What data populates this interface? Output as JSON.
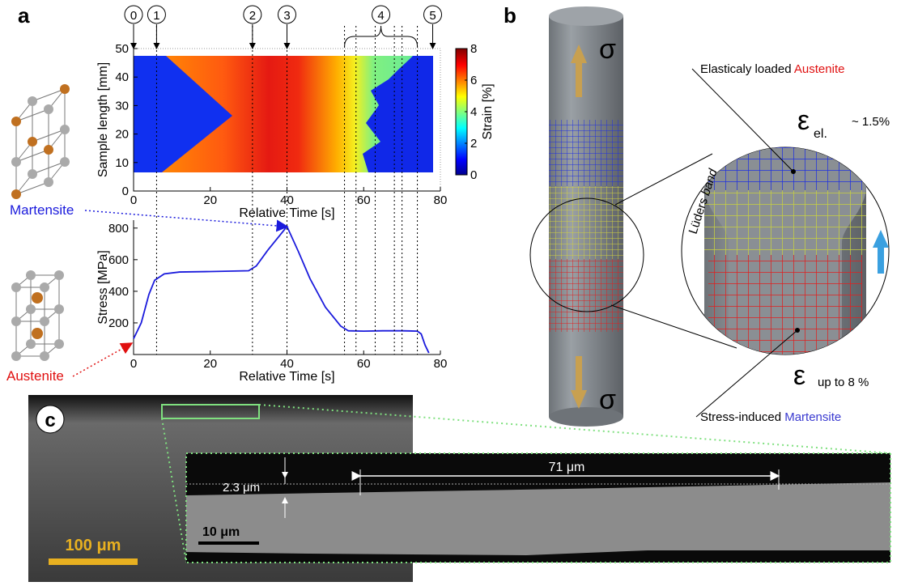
{
  "panel_labels": [
    "a",
    "b",
    "c"
  ],
  "phases": {
    "martensite": "Martensite",
    "austenite": "Austenite"
  },
  "stage_lines": [
    6,
    31,
    40,
    55,
    58,
    63,
    68,
    70,
    74
  ],
  "stages": [
    {
      "label": "0",
      "time": 0
    },
    {
      "label": "1",
      "time": 6
    },
    {
      "label": "2",
      "time": 31
    },
    {
      "label": "3",
      "time": 40
    },
    {
      "label": "4",
      "range": [
        55,
        74
      ]
    },
    {
      "label": "5",
      "time": 78
    }
  ],
  "chart_data": [
    {
      "type": "heatmap",
      "x_label": "Relative Time [s]",
      "y_label": "Sample length [mm]",
      "xlim": [
        0,
        80
      ],
      "xticks": [
        0,
        20,
        40,
        60,
        80
      ],
      "ylim": [
        0,
        50
      ],
      "yticks": [
        0,
        10,
        20,
        30,
        40,
        50
      ],
      "colorbar": {
        "label": "Strain [%]",
        "lim": [
          0,
          8
        ],
        "ticks": [
          0,
          2,
          4,
          6,
          8
        ]
      }
    },
    {
      "type": "line",
      "x_label": "Relative Time [s]",
      "y_label": "Stress [MPa]",
      "xlim": [
        0,
        80
      ],
      "xticks": [
        0,
        20,
        40,
        60,
        80
      ],
      "ylim": [
        0,
        850
      ],
      "yticks": [
        200,
        400,
        600,
        800
      ],
      "color": "#1a1adc",
      "x": [
        0,
        2,
        4,
        5.5,
        8,
        12,
        20,
        30,
        32,
        35,
        38,
        40,
        43,
        46,
        50,
        54,
        56,
        60,
        65,
        70,
        74,
        75,
        76,
        77
      ],
      "values": [
        100,
        200,
        380,
        470,
        510,
        522,
        525,
        530,
        560,
        660,
        750,
        810,
        650,
        480,
        300,
        180,
        150,
        148,
        150,
        150,
        148,
        130,
        60,
        10
      ]
    }
  ],
  "panel_b": {
    "sigma": "σ",
    "elastic_label": [
      "Elasticaly loaded ",
      "Austenite"
    ],
    "epsilon": "ε",
    "el_sub": "el.",
    "el_value": "~ 1.5%",
    "luders": [
      "Lüders",
      " band"
    ],
    "plastic_value": "up to 8 %",
    "martensite_label": [
      "Stress-induced ",
      "Martensite"
    ]
  },
  "panel_c": {
    "scale_large": "100 μm",
    "thickness": "2.3  μm",
    "length": "71  μm",
    "scale_small": "10 μm"
  }
}
